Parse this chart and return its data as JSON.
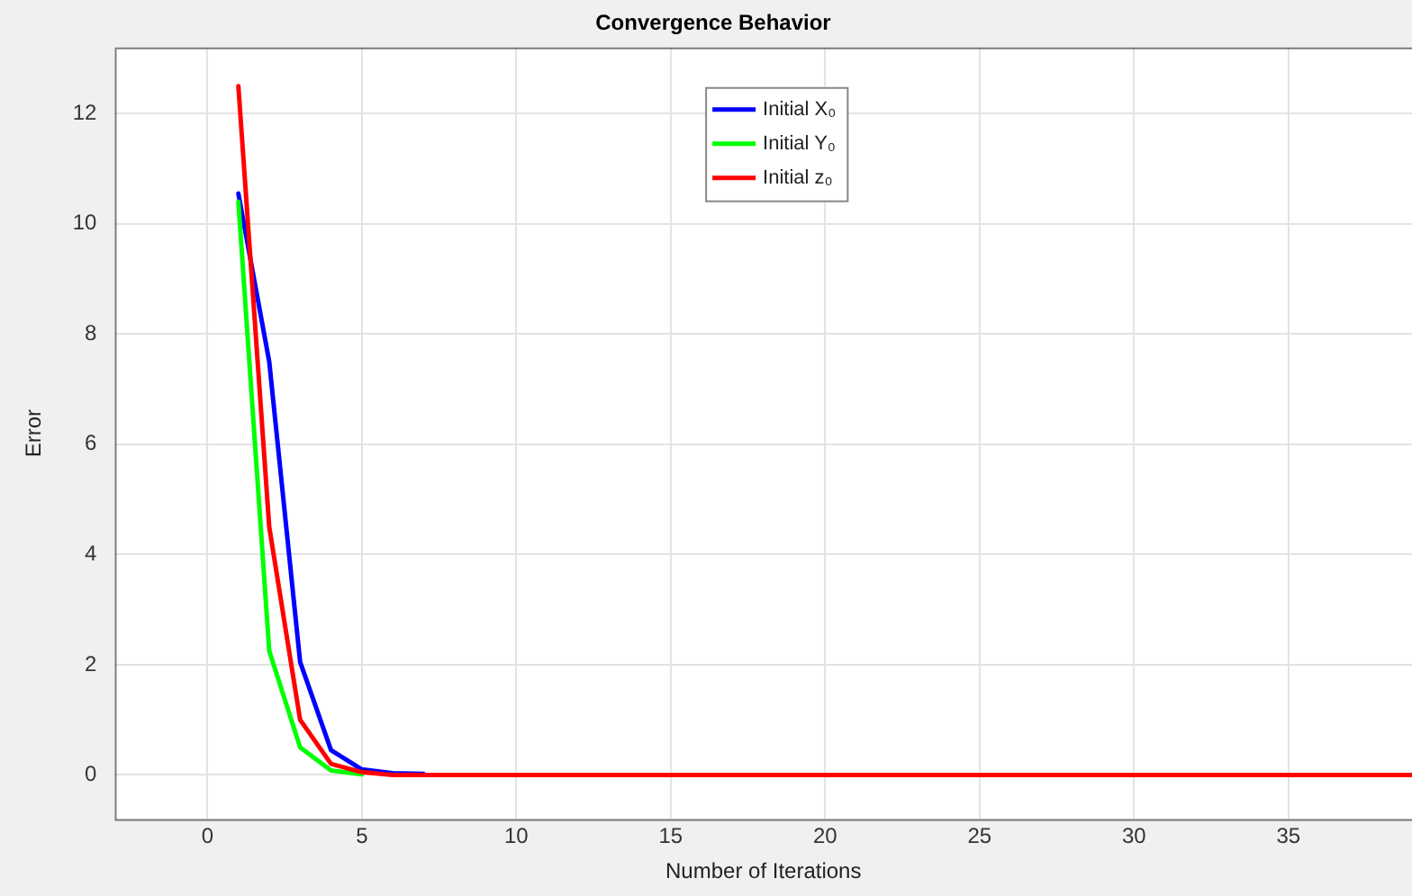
{
  "chart_data": {
    "type": "line",
    "title": "Convergence Behavior",
    "xlabel": "Number of Iterations",
    "ylabel": "Error",
    "x": [
      1,
      2,
      3,
      4,
      5,
      6,
      7,
      8,
      9,
      10,
      11,
      12,
      13,
      14,
      15,
      16,
      17,
      18,
      19,
      20,
      21,
      22,
      23,
      24,
      25,
      26,
      27,
      28,
      29,
      30,
      31,
      32,
      33,
      34,
      35,
      36,
      37,
      38,
      39
    ],
    "series": [
      {
        "name": "Initial X₀",
        "color": "#0000ff",
        "values": [
          10.55,
          7.5,
          2.05,
          0.45,
          0.1,
          0.03,
          0.02,
          null,
          null,
          null,
          null,
          null,
          null,
          null,
          null,
          null,
          null,
          null,
          null,
          null,
          null,
          null,
          null,
          null,
          null,
          null,
          null,
          null,
          null,
          null,
          null,
          null,
          null,
          null,
          null,
          null,
          null,
          null,
          null
        ]
      },
      {
        "name": "Initial Y₀",
        "color": "#00ff00",
        "values": [
          10.4,
          2.25,
          0.5,
          0.08,
          0.01,
          null,
          null,
          null,
          null,
          null,
          null,
          null,
          null,
          null,
          null,
          null,
          null,
          null,
          null,
          null,
          null,
          null,
          null,
          null,
          null,
          null,
          null,
          null,
          null,
          null,
          null,
          null,
          null,
          null,
          null,
          null,
          null,
          null,
          null
        ]
      },
      {
        "name": "Initial z₀",
        "color": "#ff0000",
        "values": [
          12.5,
          4.5,
          1.0,
          0.2,
          0.05,
          0,
          0,
          0,
          0,
          0,
          0,
          0,
          0,
          0,
          0,
          0,
          0,
          0,
          0,
          0,
          0,
          0,
          0,
          0,
          0,
          0,
          0,
          0,
          0,
          0,
          0,
          0,
          0,
          0,
          0,
          0,
          0,
          0,
          0
        ]
      }
    ],
    "xlim": [
      -3,
      39
    ],
    "xticks": [
      0,
      5,
      10,
      15,
      20,
      25,
      30,
      35
    ],
    "ylim": [
      -0.8,
      13.2
    ],
    "yticks": [
      0,
      2,
      4,
      6,
      8,
      10,
      12
    ],
    "grid": true,
    "legend": "top",
    "marker": "none",
    "line_style": "solid"
  }
}
